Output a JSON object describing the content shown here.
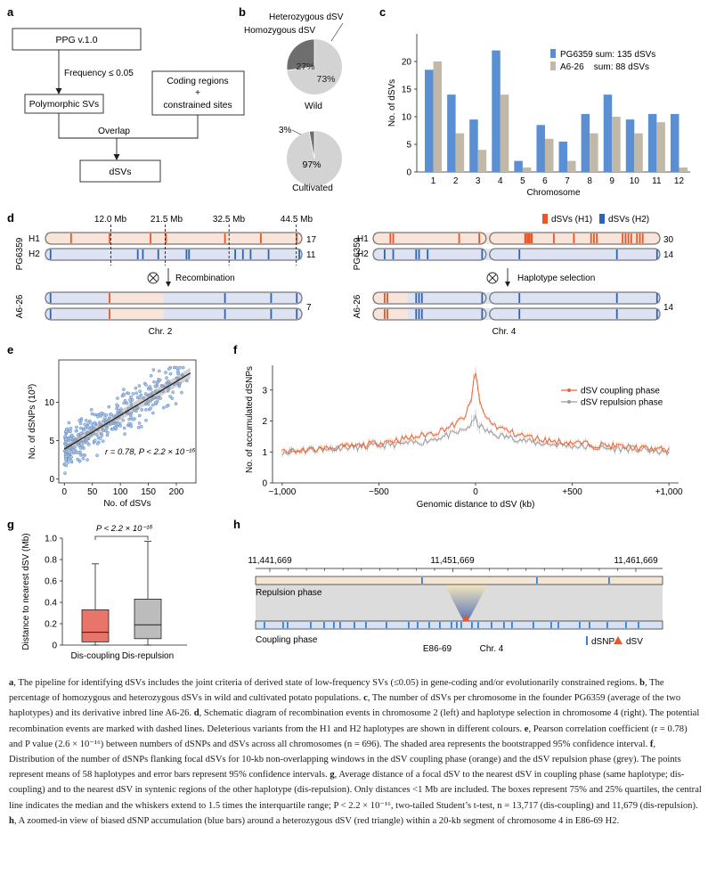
{
  "panel_a": {
    "label": "a",
    "box_ppg": "PPG v.1.0",
    "freq": "Frequency ≤ 0.05",
    "box_poly": "Polymorphic SVs",
    "box_coding_1": "Coding regions",
    "box_coding_plus": "+",
    "box_coding_2": "constrained sites",
    "overlap": "Overlap",
    "box_dsv": "dSVs"
  },
  "panel_b": {
    "label": "b",
    "het_label": "Heterozygous dSV",
    "hom_label": "Homozygous dSV",
    "wild": {
      "name": "Wild",
      "hom_pct": 27,
      "het_pct": 73,
      "hom_text": "27%",
      "het_text": "73%"
    },
    "cultivated": {
      "name": "Cultivated",
      "hom_pct": 3,
      "het_pct": 97,
      "hom_text": "3%",
      "het_text": "97%"
    }
  },
  "panel_c_text": {
    "label": "c"
  },
  "panel_d": {
    "label": "d",
    "left": {
      "marks": [
        "12.0 Mb",
        "21.5 Mb",
        "32.5 Mb",
        "44.5 Mb"
      ],
      "founder": "PG6359",
      "line": "A6-26",
      "h1": "H1",
      "h2": "H2",
      "count_h1": "17",
      "count_h2": "11",
      "count_line": "7",
      "event": "Recombination",
      "chr": "Chr. 2"
    },
    "right": {
      "legend_h1": "dSVs (H1)",
      "legend_h2": "dSVs (H2)",
      "founder": "PG6359",
      "line": "A6-26",
      "h1": "H1",
      "h2": "H2",
      "count_h1": "30",
      "count_h2": "14",
      "count_line": "14",
      "event": "Haplotype selection",
      "chr": "Chr. 4"
    },
    "colors": {
      "h1": "#e8572a",
      "h2": "#2f63b8",
      "h1_bg": "#f8e4d8",
      "h2_bg": "#dde3f3"
    }
  },
  "panel_e_text": {
    "label": "e",
    "annotation": "r = 0.78, P < 2.2 × 10⁻¹⁶"
  },
  "panel_f_text": {
    "label": "f"
  },
  "panel_g_text": {
    "label": "g",
    "pval": "P < 2.2 × 10⁻¹⁶"
  },
  "panel_h": {
    "label": "h",
    "coords": [
      "11,441,669",
      "11,451,669",
      "11,461,669"
    ],
    "repulsion": "Repulsion phase",
    "coupling": "Coupling phase",
    "sample": "E86-69",
    "chr": "Chr. 4",
    "legend_dsnp": "dSNP",
    "legend_dsv": "dSV"
  },
  "chart_data": [
    {
      "panel": "c",
      "type": "bar",
      "title": "",
      "xlabel": "Chromosome",
      "ylabel": "No. of dSVs",
      "categories": [
        "1",
        "2",
        "3",
        "4",
        "5",
        "6",
        "7",
        "8",
        "9",
        "10",
        "11",
        "12"
      ],
      "series": [
        {
          "name": "PG6359",
          "legend": "PG6359 sum: 135 dSVs",
          "color": "#5a8fd4",
          "values": [
            18.5,
            14,
            9.5,
            22,
            2,
            8.5,
            5.5,
            10.5,
            14,
            9.5,
            10.5,
            10.5
          ]
        },
        {
          "name": "A6-26",
          "legend": "A6-26    sum: 88 dSVs",
          "color": "#c1b8a8",
          "values": [
            20,
            7,
            4,
            14,
            0.8,
            6,
            2,
            7,
            10,
            7,
            9,
            0.8
          ]
        }
      ],
      "ylim": [
        0,
        25
      ],
      "yticks": [
        0,
        5,
        10,
        15,
        20
      ]
    },
    {
      "panel": "e",
      "type": "scatter",
      "xlabel": "No. of dSVs",
      "ylabel": "No. of dSNPs (10³)",
      "xlim": [
        -10,
        235
      ],
      "ylim": [
        -0.5,
        15.5
      ],
      "xticks": [
        0,
        50,
        100,
        150,
        200
      ],
      "yticks": [
        0,
        5,
        10
      ],
      "n": 696,
      "regression": {
        "x0": 0,
        "y0": 3.9,
        "x1": 225,
        "y1": 13.8
      },
      "r": 0.78,
      "p": "< 2.2e-16"
    },
    {
      "panel": "f",
      "type": "line",
      "xlabel": "Genomic distance to dSV (kb)",
      "ylabel": "No. of accumulated dSNPs",
      "xlim": [
        -1050,
        1050
      ],
      "ylim": [
        0,
        3.8
      ],
      "xticks": [
        -1000,
        -500,
        0,
        500,
        1000
      ],
      "xticklabels": [
        "−1,000",
        "−500",
        "0",
        "+500",
        "+1,000"
      ],
      "yticks": [
        0,
        1,
        2,
        3
      ],
      "series": [
        {
          "name": "dSV coupling phase",
          "color": "#e8673a",
          "x": [
            -1000,
            -900,
            -800,
            -700,
            -600,
            -500,
            -400,
            -300,
            -200,
            -100,
            -50,
            -20,
            -10,
            0,
            10,
            20,
            50,
            100,
            200,
            300,
            400,
            500,
            600,
            700,
            800,
            900,
            1000
          ],
          "y": [
            1.0,
            1.05,
            1.1,
            1.15,
            1.2,
            1.3,
            1.4,
            1.5,
            1.65,
            1.9,
            2.2,
            2.7,
            3.3,
            3.6,
            3.2,
            2.6,
            2.15,
            1.85,
            1.6,
            1.45,
            1.35,
            1.3,
            1.25,
            1.2,
            1.15,
            1.1,
            1.05
          ]
        },
        {
          "name": "dSV repulsion phase",
          "color": "#9c9c9c",
          "x": [
            -1000,
            -900,
            -800,
            -700,
            -600,
            -500,
            -400,
            -300,
            -200,
            -100,
            -50,
            -20,
            -10,
            0,
            10,
            20,
            50,
            100,
            200,
            300,
            400,
            500,
            600,
            700,
            800,
            900,
            1000
          ],
          "y": [
            1.0,
            1.05,
            1.1,
            1.15,
            1.15,
            1.2,
            1.25,
            1.3,
            1.45,
            1.6,
            1.75,
            1.9,
            2.0,
            2.1,
            1.95,
            1.85,
            1.7,
            1.55,
            1.45,
            1.3,
            1.25,
            1.2,
            1.15,
            1.1,
            1.1,
            1.05,
            1.0
          ]
        }
      ]
    },
    {
      "panel": "g",
      "type": "box",
      "ylabel": "Distance to nearest dSV (Mb)",
      "categories": [
        "Dis-coupling",
        "Dis-repulsion"
      ],
      "ylim": [
        0,
        1.0
      ],
      "yticks": [
        0,
        0.2,
        0.4,
        0.6,
        0.8,
        1.0
      ],
      "yticklabels": [
        "0",
        "0.2",
        "0.4",
        "0.6",
        "0.8",
        "1.0"
      ],
      "boxes": [
        {
          "name": "Dis-coupling",
          "color": "#e8746a",
          "min": 0.0,
          "q1": 0.03,
          "median": 0.12,
          "q3": 0.33,
          "max": 0.76
        },
        {
          "name": "Dis-repulsion",
          "color": "#bcbcbc",
          "min": 0.0,
          "q1": 0.06,
          "median": 0.19,
          "q3": 0.43,
          "max": 0.97
        }
      ]
    }
  ],
  "caption": [
    {
      "b": "a",
      "t": ", The pipeline for identifying dSVs includes the joint criteria of derived state of low-frequency SVs (≤0.05) in gene-coding and/or evolutionarily constrained regions. "
    },
    {
      "b": "b",
      "t": ", The percentage of homozygous and heterozygous dSVs in wild and cultivated potato populations. "
    },
    {
      "b": "c",
      "t": ", The number of dSVs per chromosome in the founder PG6359 (average of the two haplotypes) and its derivative inbred line A6-26. "
    },
    {
      "b": "d",
      "t": ", Schematic diagram of recombination events in chromosome 2 (left) and haplotype selection in chromosome 4 (right). The potential recombination events are marked with dashed lines. Deleterious variants from the H1 and H2 haplotypes are shown in different colours. "
    },
    {
      "b": "e",
      "t": ", Pearson correlation coefficient (r = 0.78) and P value (2.6 × 10⁻¹⁶) between numbers of dSNPs and dSVs across all chromosomes (n = 696). The shaded area represents the bootstrapped 95% confidence interval. "
    },
    {
      "b": "f",
      "t": ", Distribution of the number of dSNPs flanking focal dSVs for 10-kb non-overlapping windows in the dSV coupling phase (orange) and the dSV repulsion phase (grey). The points represent means of 58 haplotypes and error bars represent 95% confidence intervals. "
    },
    {
      "b": "g",
      "t": ", Average distance of a focal dSV to the nearest dSV in coupling phase (same haplotype; dis-coupling) and to the nearest dSV in syntenic regions of the other haplotype (dis-repulsion). Only distances <1 Mb are included. The boxes represent 75% and 25% quartiles, the central line indicates the median and the whiskers extend to 1.5 times the interquartile range; P < 2.2 × 10⁻¹⁶, two-tailed Student’s t-test, n = 13,717 (dis-coupling) and 11,679 (dis-repulsion). "
    },
    {
      "b": "h",
      "t": ", A zoomed-in view of biased dSNP accumulation (blue bars) around a heterozygous dSV (red triangle) within a 20-kb segment of chromosome 4 in E86-69 H2."
    }
  ]
}
